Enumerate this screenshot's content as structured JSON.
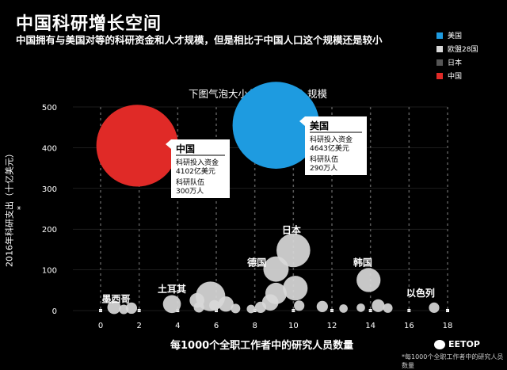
{
  "title": "中国科研增长空间",
  "subtitle": "中国拥有与美国对等的科研资金和人才规模，但是相比于中国人口这个规模还是较小",
  "chart_title": "下图气泡大小代表科研投入规模",
  "ylabel": "2016年科研支出（十亿美元）*",
  "xlabel": "每1000个全职工作者中的研究人员数量",
  "footnote": "*每1000个全职工作者中的研究人员数量",
  "brand": "EETOP",
  "legend": [
    {
      "label": "美国",
      "color": "#1e9be0"
    },
    {
      "label": "欧盟28国",
      "color": "#d8d8d8"
    },
    {
      "label": "日本",
      "color": "#555555"
    },
    {
      "label": "中国",
      "color": "#e02a27"
    }
  ],
  "callouts": [
    {
      "country": "中国",
      "line1": "科研投入资金",
      "line2": "4102亿美元",
      "line3": "科研队伍",
      "line4": "300万人"
    },
    {
      "country": "美国",
      "line1": "科研投入资金",
      "line2": "4643亿美元",
      "line3": "科研队伍",
      "line4": "290万人"
    }
  ],
  "chart_data": {
    "type": "scatter",
    "xlim": [
      0,
      18
    ],
    "ylim": [
      0,
      500
    ],
    "xticks": [
      0,
      2,
      4,
      6,
      8,
      10,
      12,
      14,
      16,
      18
    ],
    "yticks": [
      0,
      100,
      200,
      300,
      400,
      500
    ],
    "labels": [
      {
        "text": "墨西哥",
        "x": 0.8,
        "y": 20
      },
      {
        "text": "土耳其",
        "x": 3.7,
        "y": 45
      },
      {
        "text": "德国",
        "x": 8.1,
        "y": 110
      },
      {
        "text": "日本",
        "x": 9.9,
        "y": 190
      },
      {
        "text": "韩国",
        "x": 13.6,
        "y": 110
      },
      {
        "text": "以色列",
        "x": 16.6,
        "y": 35
      }
    ],
    "points": [
      {
        "name": "中国",
        "x": 1.9,
        "y": 405,
        "size": 410,
        "color": "#e02a27"
      },
      {
        "name": "美国",
        "x": 9.1,
        "y": 455,
        "size": 464,
        "color": "#1e9be0"
      },
      {
        "name": "",
        "x": 0.7,
        "y": 8,
        "size": 9,
        "color": "#d8d8d8"
      },
      {
        "name": "",
        "x": 1.2,
        "y": 3,
        "size": 4,
        "color": "#d8d8d8"
      },
      {
        "name": "",
        "x": 1.6,
        "y": 6,
        "size": 6,
        "color": "#d8d8d8"
      },
      {
        "name": "",
        "x": 3.7,
        "y": 16,
        "size": 17,
        "color": "#d8d8d8"
      },
      {
        "name": "",
        "x": 5.0,
        "y": 25,
        "size": 11,
        "color": "#d8d8d8"
      },
      {
        "name": "",
        "x": 5.1,
        "y": 8,
        "size": 5,
        "color": "#d8d8d8"
      },
      {
        "name": "",
        "x": 5.7,
        "y": 35,
        "size": 50,
        "color": "#d8d8d8"
      },
      {
        "name": "",
        "x": 5.9,
        "y": 13,
        "size": 5,
        "color": "#d8d8d8"
      },
      {
        "name": "",
        "x": 6.5,
        "y": 16,
        "size": 12,
        "color": "#d8d8d8"
      },
      {
        "name": "",
        "x": 7.0,
        "y": 5,
        "size": 4,
        "color": "#d8d8d8"
      },
      {
        "name": "",
        "x": 7.8,
        "y": 4,
        "size": 3,
        "color": "#d8d8d8"
      },
      {
        "name": "",
        "x": 8.3,
        "y": 8,
        "size": 6,
        "color": "#d8d8d8"
      },
      {
        "name": "",
        "x": 8.8,
        "y": 20,
        "size": 14,
        "color": "#d8d8d8"
      },
      {
        "name": "",
        "x": 9.1,
        "y": 42,
        "size": 25,
        "color": "#d8d8d8"
      },
      {
        "name": "",
        "x": 9.1,
        "y": 102,
        "size": 36,
        "color": "#d8d8d8"
      },
      {
        "name": "",
        "x": 10.0,
        "y": 148,
        "size": 66,
        "color": "#d8d8d8"
      },
      {
        "name": "",
        "x": 10.1,
        "y": 55,
        "size": 34,
        "color": "#d8d8d8"
      },
      {
        "name": "",
        "x": 10.3,
        "y": 12,
        "size": 5,
        "color": "#d8d8d8"
      },
      {
        "name": "",
        "x": 11.5,
        "y": 10,
        "size": 6,
        "color": "#d8d8d8"
      },
      {
        "name": "",
        "x": 12.6,
        "y": 5,
        "size": 3,
        "color": "#d8d8d8"
      },
      {
        "name": "",
        "x": 13.5,
        "y": 7,
        "size": 3,
        "color": "#d8d8d8"
      },
      {
        "name": "",
        "x": 13.9,
        "y": 75,
        "size": 32,
        "color": "#d8d8d8"
      },
      {
        "name": "",
        "x": 14.4,
        "y": 12,
        "size": 8,
        "color": "#d8d8d8"
      },
      {
        "name": "",
        "x": 14.9,
        "y": 6,
        "size": 4,
        "color": "#d8d8d8"
      },
      {
        "name": "",
        "x": 17.3,
        "y": 7,
        "size": 5,
        "color": "#d8d8d8"
      }
    ]
  }
}
